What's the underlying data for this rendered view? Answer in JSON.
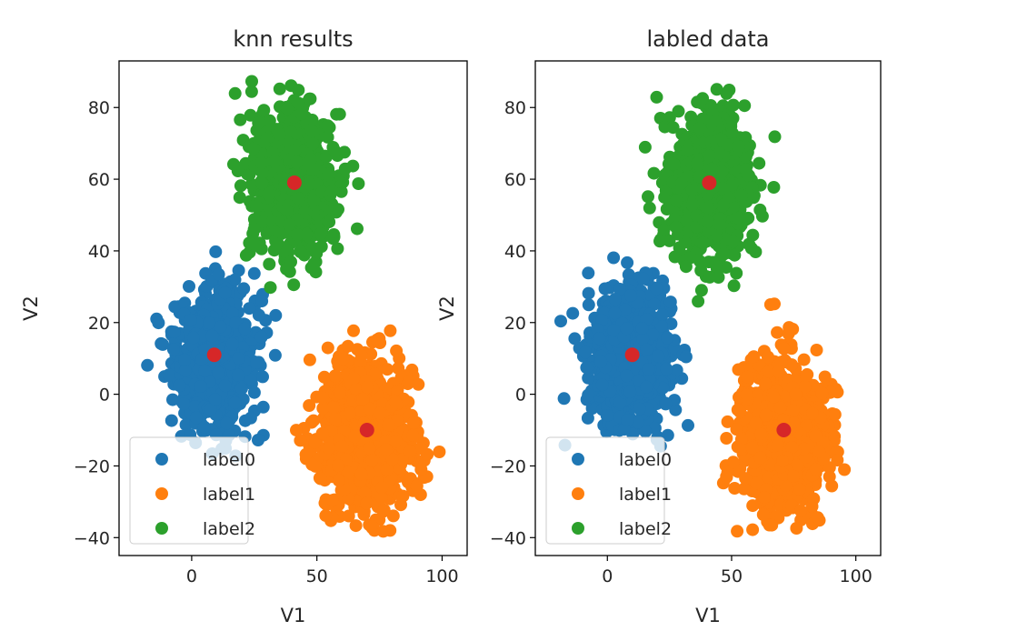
{
  "chart_data": [
    {
      "type": "scatter",
      "title": "knn results",
      "xlabel": "V1",
      "ylabel": "V2",
      "xlim": [
        -29,
        110
      ],
      "ylim": [
        -45,
        93
      ],
      "xticks": [
        0,
        50,
        100
      ],
      "yticks": [
        -40,
        -20,
        0,
        20,
        40,
        60,
        80
      ],
      "grid": false,
      "legend": {
        "placement": "lower left",
        "entries": [
          "label0",
          "label1",
          "label2"
        ]
      },
      "series": [
        {
          "name": "label0",
          "color": "#1f77b4",
          "cluster": {
            "center": [
              9,
              10
            ],
            "spread": [
              8,
              9
            ],
            "approx_range_x": [
              -25,
              40
            ],
            "approx_range_y": [
              -23,
              40
            ]
          }
        },
        {
          "name": "label1",
          "color": "#ff7f0e",
          "cluster": {
            "center": [
              70,
              -12
            ],
            "spread": [
              9,
              10
            ],
            "approx_range_x": [
              35,
              105
            ],
            "approx_range_y": [
              -40,
              26
            ]
          }
        },
        {
          "name": "label2",
          "color": "#2ca02c",
          "cluster": {
            "center": [
              41,
              59
            ],
            "spread": [
              8,
              10
            ],
            "approx_range_x": [
              10,
              72
            ],
            "approx_range_y": [
              24,
              88
            ]
          }
        }
      ],
      "centroids": {
        "color": "#d62728",
        "points": [
          [
            9,
            11
          ],
          [
            70,
            -10
          ],
          [
            41,
            59
          ]
        ]
      }
    },
    {
      "type": "scatter",
      "title": "labled data",
      "xlabel": "V1",
      "ylabel": "V2",
      "xlim": [
        -29,
        110
      ],
      "ylim": [
        -45,
        93
      ],
      "xticks": [
        0,
        50,
        100
      ],
      "yticks": [
        -40,
        -20,
        0,
        20,
        40,
        60,
        80
      ],
      "grid": false,
      "legend": {
        "placement": "lower left",
        "entries": [
          "label0",
          "label1",
          "label2"
        ]
      },
      "series": [
        {
          "name": "label0",
          "color": "#1f77b4",
          "cluster": {
            "center": [
              9,
              10
            ],
            "spread": [
              8,
              9
            ],
            "approx_range_x": [
              -25,
              40
            ],
            "approx_range_y": [
              -23,
              40
            ]
          }
        },
        {
          "name": "label1",
          "color": "#ff7f0e",
          "cluster": {
            "center": [
              70,
              -12
            ],
            "spread": [
              9,
              10
            ],
            "approx_range_x": [
              35,
              105
            ],
            "approx_range_y": [
              -40,
              26
            ]
          }
        },
        {
          "name": "label2",
          "color": "#2ca02c",
          "cluster": {
            "center": [
              41,
              59
            ],
            "spread": [
              8,
              10
            ],
            "approx_range_x": [
              10,
              72
            ],
            "approx_range_y": [
              24,
              88
            ]
          }
        }
      ],
      "centroids": {
        "color": "#d62728",
        "points": [
          [
            10,
            11
          ],
          [
            71,
            -10
          ],
          [
            41,
            59
          ]
        ]
      }
    }
  ]
}
